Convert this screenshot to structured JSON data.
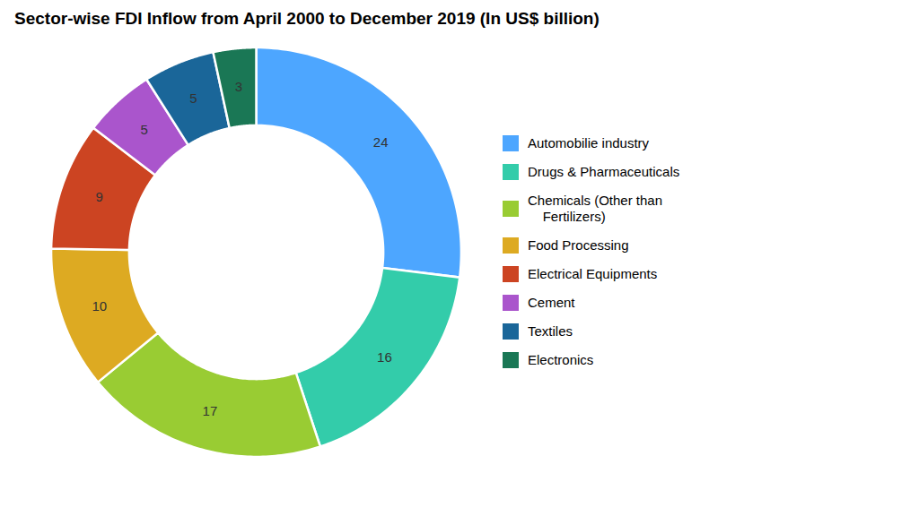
{
  "chart_data": {
    "type": "pie",
    "title": "Sector-wise FDI Inflow from April 2000 to December 2019 (In US$ billion)",
    "categories": [
      "Automobilie industry",
      "Drugs & Pharmaceuticals",
      "Chemicals (Other than\n    Fertilizers)",
      "Food Processing",
      "Electrical Equipments",
      "Cement",
      "Textiles",
      "Electronics"
    ],
    "values": [
      24,
      16,
      17,
      10,
      9,
      5,
      5,
      3
    ],
    "colors": [
      "#4da6ff",
      "#33ccaa",
      "#99cc33",
      "#ddaa22",
      "#cc4422",
      "#aa55cc",
      "#1a6699",
      "#1a7755"
    ],
    "data_labels": true,
    "legend": "right"
  }
}
